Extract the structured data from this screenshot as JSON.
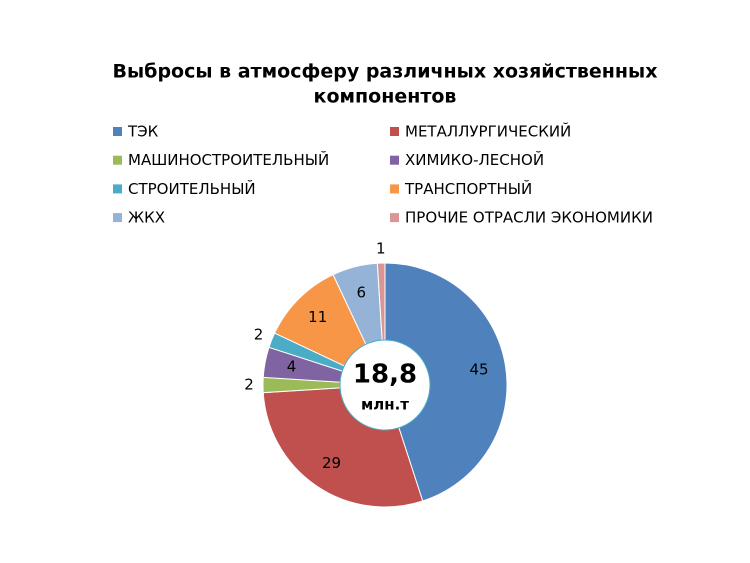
{
  "chart_data": {
    "type": "pie",
    "title": [
      "Выбросы в атмосферу различных хозяйственных",
      "компонентов"
    ],
    "categories": [
      "ТЭК",
      "МЕТАЛЛУРГИЧЕСКИЙ",
      "МАШИНОСТРОИТЕЛЬНЫЙ",
      "ХИМИКО-ЛЕСНОЙ",
      "СТРОИТЕЛЬНЫЙ",
      "ТРАНСПОРТНЫЙ",
      "ЖКХ",
      "ПРОЧИЕ ОТРАСЛИ ЭКОНОМИКИ"
    ],
    "values": [
      45,
      29,
      2,
      4,
      2,
      11,
      6,
      1
    ],
    "colors": [
      "#4f81bd",
      "#c0504d",
      "#9bbb59",
      "#8064a2",
      "#4bacc6",
      "#f79646",
      "#95b3d7",
      "#d99694"
    ],
    "center_label": [
      "18,8",
      "млн.т"
    ],
    "legend": "top"
  }
}
